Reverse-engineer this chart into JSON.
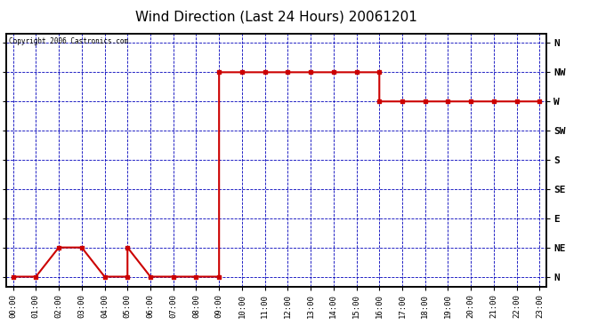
{
  "title": "Wind Direction (Last 24 Hours) 20061201",
  "copyright": "Copyright 2006 Castronics.com",
  "x_labels": [
    "00:00",
    "01:00",
    "02:00",
    "03:00",
    "04:00",
    "05:00",
    "06:00",
    "07:00",
    "08:00",
    "09:00",
    "10:00",
    "11:00",
    "12:00",
    "13:00",
    "14:00",
    "15:00",
    "16:00",
    "17:00",
    "18:00",
    "19:00",
    "20:00",
    "21:00",
    "22:00",
    "23:00"
  ],
  "y_labels": [
    "N",
    "NE",
    "E",
    "SE",
    "S",
    "SW",
    "W",
    "NW",
    "N"
  ],
  "y_values": [
    0,
    45,
    90,
    135,
    180,
    225,
    270,
    315,
    360
  ],
  "data_x": [
    0,
    1,
    2,
    3,
    4,
    5,
    5,
    6,
    7,
    8,
    9,
    9,
    10,
    11,
    12,
    13,
    14,
    15,
    16,
    16,
    17,
    18,
    19,
    20,
    21,
    22,
    23
  ],
  "data_y": [
    0,
    0,
    45,
    45,
    0,
    0,
    45,
    0,
    0,
    0,
    0,
    315,
    315,
    315,
    315,
    315,
    315,
    315,
    315,
    270,
    270,
    270,
    270,
    270,
    270,
    270,
    270
  ],
  "line_color": "#cc0000",
  "marker": "s",
  "marker_size": 2.5,
  "background_color": "#ffffff",
  "plot_bg_color": "#ffffff",
  "grid_color": "#0000bb",
  "border_color": "#000000",
  "title_fontsize": 11,
  "figsize": [
    6.9,
    3.75
  ],
  "dpi": 100
}
